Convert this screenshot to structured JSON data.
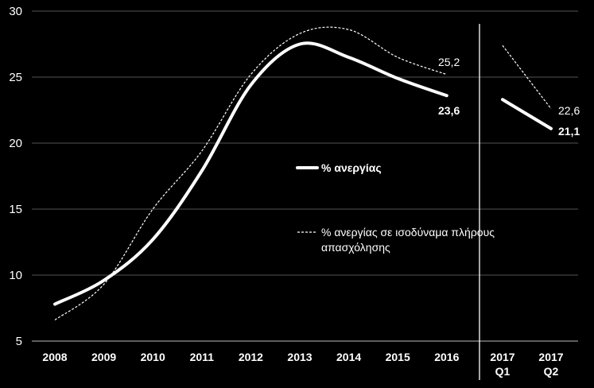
{
  "chart_data": {
    "type": "line",
    "title": "",
    "xlabel": "",
    "ylabel": "",
    "ylim": [
      5,
      30
    ],
    "yticks": [
      5,
      10,
      15,
      20,
      25,
      30
    ],
    "grid": true,
    "categories": [
      "2008",
      "2009",
      "2010",
      "2011",
      "2012",
      "2013",
      "2014",
      "2015",
      "2016"
    ],
    "quarter_categories": [
      {
        "year": "2017",
        "quarter": "Q1"
      },
      {
        "year": "2017",
        "quarter": "Q2"
      }
    ],
    "colors": {
      "background": "#000000",
      "lines": "#ffffff",
      "grid": "#555555"
    },
    "series": [
      {
        "name": "% ανεργίας",
        "style": "solid-bold",
        "annual_values": [
          7.8,
          9.6,
          12.7,
          17.9,
          24.4,
          27.5,
          26.5,
          24.9,
          23.6
        ],
        "quarterly_values": [
          23.3,
          21.1
        ],
        "end_label": "23,6",
        "quarter_end_label": "21,1"
      },
      {
        "name": "% ανεργίας σε ισοδύναμα πλήρους απασχόλησης",
        "name_line1": "% ανεργίας σε ισοδύναμα πλήρους",
        "name_line2": "απασχόλησης",
        "style": "dashed",
        "annual_values": [
          6.6,
          9.3,
          15.0,
          19.4,
          25.2,
          28.3,
          28.6,
          26.5,
          25.2
        ],
        "quarterly_values": [
          27.4,
          22.6
        ],
        "end_label": "25,2",
        "quarter_end_label": "22,6"
      }
    ]
  }
}
